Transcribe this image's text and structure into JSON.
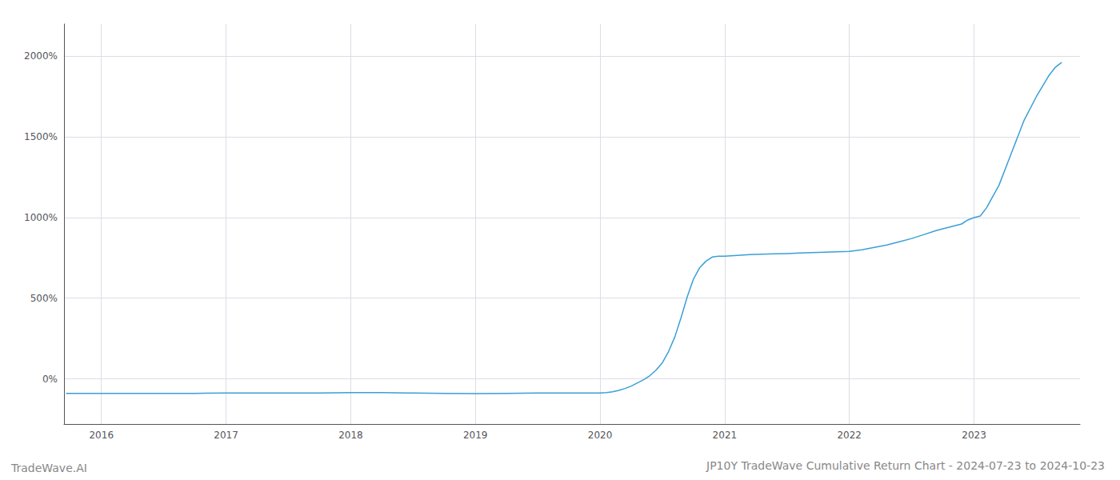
{
  "chart_data": {
    "type": "line",
    "title": "JP10Y TradeWave Cumulative Return Chart - 2024-07-23 to 2024-10-23",
    "annotations": [
      "TradeWave.AI"
    ],
    "color": "#3a9fd8",
    "grid": true,
    "x": [
      2015.72,
      2016.0,
      2016.25,
      2016.5,
      2016.75,
      2017.0,
      2017.25,
      2017.5,
      2017.75,
      2018.0,
      2018.25,
      2018.5,
      2018.75,
      2019.0,
      2019.25,
      2019.5,
      2019.75,
      2020.0,
      2020.05,
      2020.1,
      2020.15,
      2020.2,
      2020.25,
      2020.3,
      2020.35,
      2020.4,
      2020.45,
      2020.5,
      2020.55,
      2020.6,
      2020.65,
      2020.7,
      2020.75,
      2020.8,
      2020.85,
      2020.9,
      2020.95,
      2021.0,
      2021.1,
      2021.2,
      2021.3,
      2021.4,
      2021.5,
      2021.6,
      2021.7,
      2021.8,
      2021.9,
      2022.0,
      2022.1,
      2022.2,
      2022.3,
      2022.4,
      2022.5,
      2022.6,
      2022.7,
      2022.8,
      2022.9,
      2022.95,
      2023.0,
      2023.05,
      2023.1,
      2023.2,
      2023.3,
      2023.4,
      2023.5,
      2023.6,
      2023.65,
      2023.7
    ],
    "values": [
      -90,
      -90,
      -90,
      -90,
      -90,
      -88,
      -88,
      -88,
      -88,
      -85,
      -85,
      -88,
      -90,
      -92,
      -90,
      -88,
      -88,
      -88,
      -85,
      -80,
      -72,
      -60,
      -45,
      -25,
      -5,
      20,
      55,
      100,
      170,
      260,
      380,
      510,
      620,
      690,
      730,
      755,
      760,
      760,
      765,
      770,
      773,
      775,
      777,
      780,
      783,
      785,
      788,
      790,
      800,
      815,
      830,
      850,
      870,
      895,
      920,
      940,
      960,
      985,
      1000,
      1010,
      1060,
      1200,
      1400,
      1600,
      1750,
      1880,
      1930,
      1960
    ],
    "xlim": [
      2015.7,
      2023.85
    ],
    "xticks": [
      2016,
      2017,
      2018,
      2019,
      2020,
      2021,
      2022,
      2023
    ],
    "ylim": [
      -280,
      2200
    ],
    "yticks": [
      {
        "value": 0,
        "label": "0%"
      },
      {
        "value": 500,
        "label": "500%"
      },
      {
        "value": 1000,
        "label": "1000%"
      },
      {
        "value": 1500,
        "label": "1500%"
      },
      {
        "value": 2000,
        "label": "2000%"
      }
    ]
  }
}
